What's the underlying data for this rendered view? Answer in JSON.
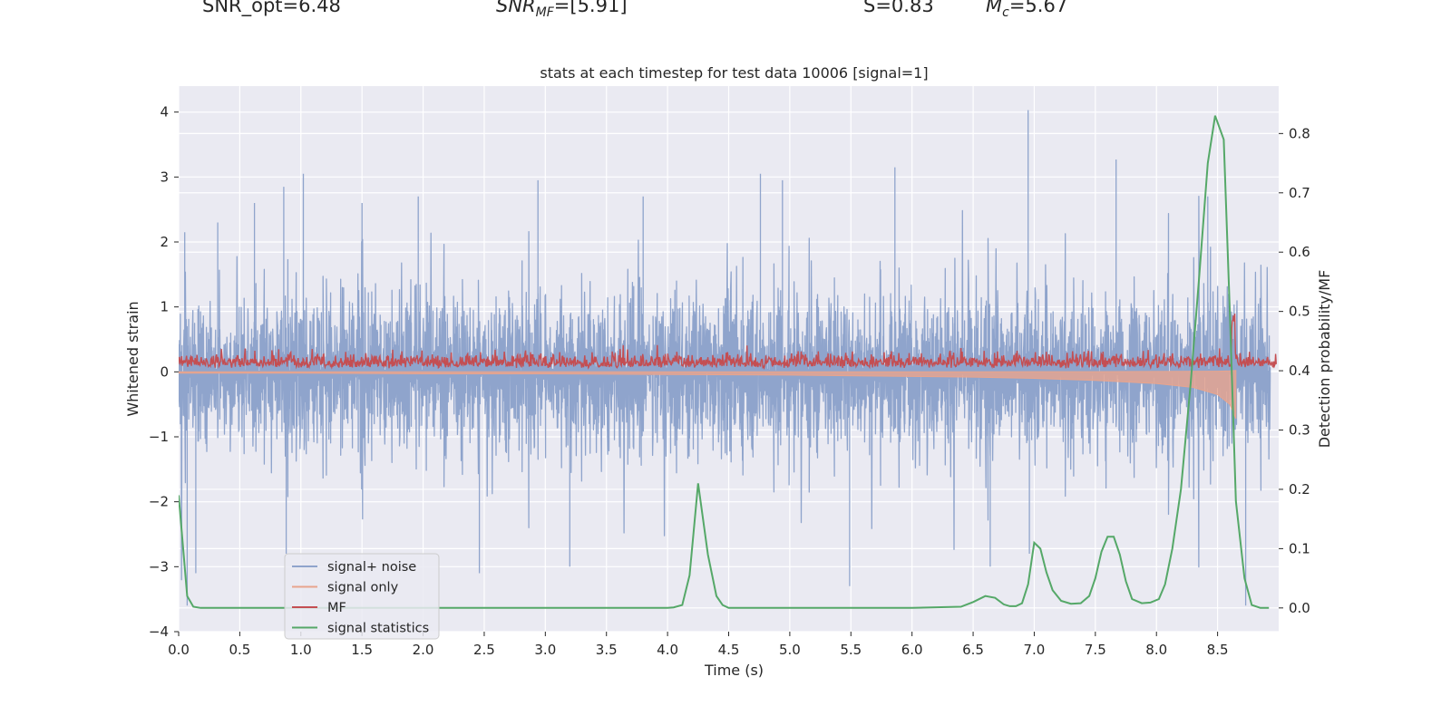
{
  "header": {
    "snr_opt": "SNR_opt=6.48",
    "snr_mf_prefix": "SNR",
    "snr_mf_sub": "MF",
    "snr_mf_value": "=[5.91]",
    "s_value": "S=0.83",
    "mc_prefix": "M",
    "mc_sub": "c",
    "mc_value": "=5.67"
  },
  "colors": {
    "background": "#eaeaf2",
    "grid": "#ffffff",
    "signal_noise": "#8fa4cc",
    "signal_only": "#e8a48d",
    "mf": "#c44e52",
    "signal_statistics": "#55a868"
  },
  "chart_data": {
    "type": "line",
    "title": "stats at each timestep for test data 10006 [signal=1]",
    "xlabel": "Time (s)",
    "ylabel": "Whitened strain",
    "y2label": "Detection probability/MF",
    "xlim": [
      0,
      9.0
    ],
    "ylim": [
      -4,
      4.4
    ],
    "y2lim": [
      -0.04,
      0.88
    ],
    "xticks": [
      "0.0",
      "0.5",
      "1.0",
      "1.5",
      "2.0",
      "2.5",
      "3.0",
      "3.5",
      "4.0",
      "4.5",
      "5.0",
      "5.5",
      "6.0",
      "6.5",
      "7.0",
      "7.5",
      "8.0",
      "8.5"
    ],
    "yticks": [
      "4",
      "3",
      "2",
      "1",
      "0",
      "−1",
      "−2",
      "−3",
      "−4"
    ],
    "y2ticks": [
      "0.8",
      "0.7",
      "0.6",
      "0.5",
      "0.4",
      "0.3",
      "0.2",
      "0.1",
      "0.0"
    ],
    "grid": true,
    "legend_position": "lower-left",
    "series": [
      {
        "name": "signal+ noise",
        "axis": "left",
        "style": "dense noise, amplitude ~±2, peaks to ~4",
        "peaks": [
          [
            0.05,
            2.15
          ],
          [
            0.32,
            2.3
          ],
          [
            0.62,
            2.6
          ],
          [
            0.86,
            2.85
          ],
          [
            1.02,
            3.05
          ],
          [
            1.5,
            2.6
          ],
          [
            1.96,
            2.7
          ],
          [
            2.94,
            2.95
          ],
          [
            3.8,
            2.7
          ],
          [
            4.76,
            3.05
          ],
          [
            4.94,
            2.95
          ],
          [
            5.86,
            3.15
          ],
          [
            6.95,
            4.03
          ],
          [
            7.67,
            3.27
          ],
          [
            8.42,
            2.7
          ]
        ],
        "troughs": [
          [
            0.07,
            -3.6
          ],
          [
            0.14,
            -3.1
          ],
          [
            0.88,
            -2.8
          ],
          [
            2.46,
            -3.1
          ],
          [
            3.2,
            -3.0
          ],
          [
            5.49,
            -3.3
          ],
          [
            6.64,
            -3.0
          ],
          [
            6.96,
            -2.8
          ],
          [
            8.73,
            -3.6
          ]
        ]
      },
      {
        "name": "signal only",
        "axis": "left",
        "x": [
          0.0,
          1.0,
          2.0,
          3.0,
          4.0,
          5.0,
          6.0,
          6.5,
          7.0,
          7.5,
          8.0,
          8.3,
          8.5,
          8.6,
          8.65
        ],
        "envelope": [
          0.02,
          0.02,
          0.03,
          0.03,
          0.04,
          0.05,
          0.07,
          0.08,
          0.1,
          0.13,
          0.18,
          0.24,
          0.35,
          0.5,
          0.72
        ]
      },
      {
        "name": "MF",
        "axis": "right",
        "style": "noisy band between ~0.4 and ~0.45, spike at ~8.63",
        "spike": [
          8.63,
          0.5
        ]
      },
      {
        "name": "signal statistics",
        "axis": "right",
        "x": [
          0.0,
          0.07,
          0.12,
          0.18,
          0.3,
          1.0,
          2.0,
          3.0,
          3.5,
          4.0,
          4.05,
          4.12,
          4.18,
          4.25,
          4.33,
          4.4,
          4.45,
          4.5,
          5.0,
          6.0,
          6.4,
          6.5,
          6.6,
          6.68,
          6.75,
          6.8,
          6.85,
          6.9,
          6.95,
          7.0,
          7.05,
          7.1,
          7.15,
          7.22,
          7.3,
          7.38,
          7.45,
          7.5,
          7.55,
          7.6,
          7.65,
          7.7,
          7.75,
          7.8,
          7.88,
          7.95,
          8.02,
          8.07,
          8.13,
          8.2,
          8.28,
          8.35,
          8.42,
          8.48,
          8.55,
          8.6,
          8.65,
          8.72,
          8.78,
          8.85,
          8.92
        ],
        "y": [
          0.19,
          0.02,
          0.002,
          0.0,
          0.0,
          0.0,
          0.0,
          0.0,
          0.0,
          0.0,
          0.001,
          0.005,
          0.055,
          0.21,
          0.09,
          0.02,
          0.005,
          0.0,
          0.0,
          0.0,
          0.002,
          0.01,
          0.02,
          0.017,
          0.006,
          0.003,
          0.003,
          0.008,
          0.04,
          0.11,
          0.1,
          0.06,
          0.03,
          0.012,
          0.007,
          0.008,
          0.02,
          0.05,
          0.095,
          0.12,
          0.12,
          0.09,
          0.045,
          0.015,
          0.008,
          0.009,
          0.015,
          0.04,
          0.1,
          0.2,
          0.38,
          0.56,
          0.75,
          0.83,
          0.79,
          0.5,
          0.18,
          0.05,
          0.005,
          0.0,
          0.0
        ]
      }
    ]
  }
}
